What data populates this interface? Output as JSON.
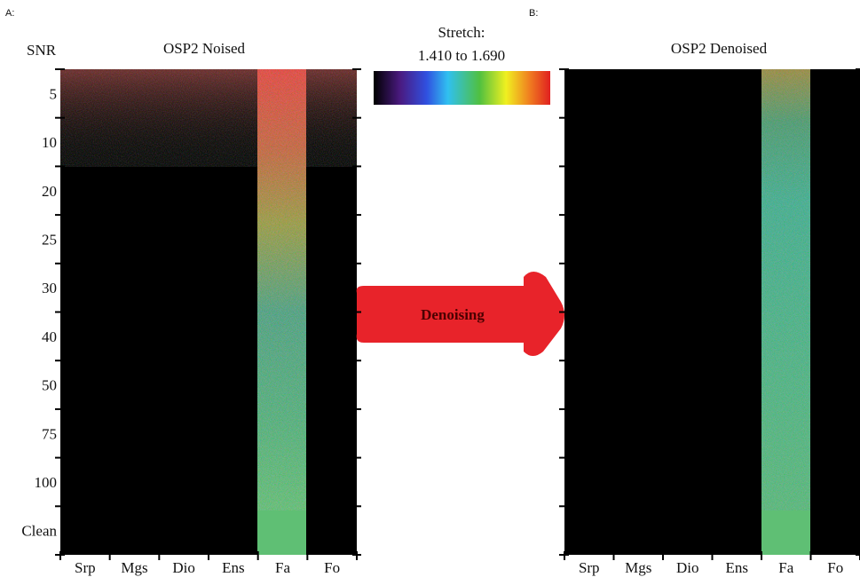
{
  "panel_a": {
    "label": "A:",
    "title": "OSP2 Noised",
    "y_label": "SNR",
    "rows": [
      "5",
      "10",
      "20",
      "25",
      "30",
      "40",
      "50",
      "75",
      "100",
      "Clean"
    ],
    "columns": [
      "Srp",
      "Mgs",
      "Dio",
      "Ens",
      "Fa",
      "Fo"
    ]
  },
  "colorbar": {
    "title": "Stretch:",
    "range": "1.410 to 1.690"
  },
  "arrow": {
    "label": "Denoising"
  },
  "panel_b": {
    "label": "B:",
    "title": "OSP2 Denoised",
    "columns": [
      "Srp",
      "Mgs",
      "Dio",
      "Ens",
      "Fa",
      "Fo"
    ]
  }
}
